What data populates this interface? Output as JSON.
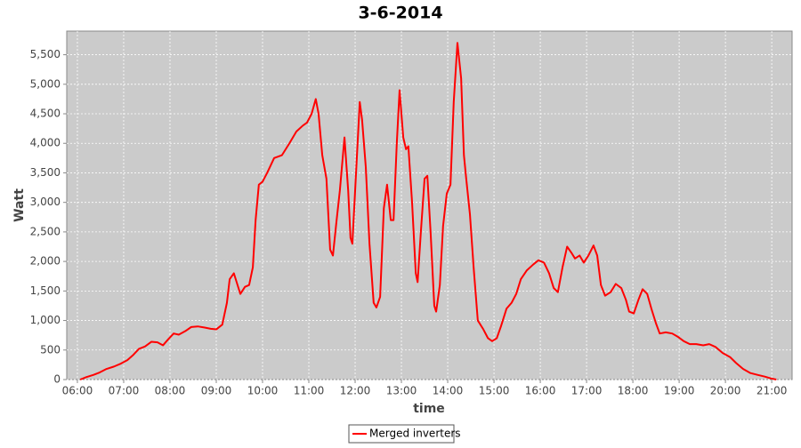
{
  "chart_data": {
    "type": "line",
    "title": "3-6-2014",
    "xlabel": "time",
    "ylabel": "Watt",
    "x": [
      6.06,
      6.19,
      6.35,
      6.48,
      6.63,
      6.79,
      6.94,
      7.08,
      7.21,
      7.33,
      7.46,
      7.6,
      7.73,
      7.85,
      7.96,
      8.08,
      8.19,
      8.33,
      8.46,
      8.6,
      8.75,
      8.88,
      9.0,
      9.13,
      9.23,
      9.29,
      9.38,
      9.44,
      9.52,
      9.62,
      9.71,
      9.79,
      9.85,
      9.92,
      10.0,
      10.1,
      10.25,
      10.42,
      10.58,
      10.73,
      10.87,
      10.96,
      11.06,
      11.15,
      11.21,
      11.29,
      11.38,
      11.46,
      11.52,
      11.6,
      11.67,
      11.77,
      11.85,
      11.9,
      11.94,
      12.02,
      12.1,
      12.15,
      12.23,
      12.31,
      12.4,
      12.46,
      12.54,
      12.62,
      12.69,
      12.77,
      12.83,
      12.9,
      12.96,
      13.04,
      13.1,
      13.15,
      13.23,
      13.31,
      13.35,
      13.42,
      13.5,
      13.56,
      13.63,
      13.71,
      13.75,
      13.83,
      13.9,
      13.98,
      14.06,
      14.13,
      14.21,
      14.29,
      14.35,
      14.4,
      14.48,
      14.56,
      14.65,
      14.77,
      14.87,
      14.96,
      15.06,
      15.15,
      15.27,
      15.38,
      15.48,
      15.58,
      15.71,
      15.85,
      15.96,
      16.08,
      16.19,
      16.29,
      16.38,
      16.48,
      16.58,
      16.67,
      16.75,
      16.85,
      16.94,
      17.04,
      17.15,
      17.23,
      17.31,
      17.4,
      17.52,
      17.63,
      17.75,
      17.85,
      17.92,
      18.02,
      18.12,
      18.21,
      18.31,
      18.4,
      18.5,
      18.58,
      18.71,
      18.85,
      18.98,
      19.1,
      19.23,
      19.37,
      19.52,
      19.65,
      19.79,
      19.94,
      20.1,
      20.23,
      20.38,
      20.54,
      20.69,
      20.85,
      20.98,
      21.1
    ],
    "series": [
      {
        "name": "Merged inverters",
        "color": "#ff0000",
        "values": [
          0,
          40,
          80,
          120,
          180,
          220,
          270,
          330,
          420,
          520,
          560,
          640,
          630,
          580,
          680,
          780,
          760,
          820,
          890,
          900,
          880,
          860,
          850,
          930,
          1300,
          1700,
          1800,
          1650,
          1450,
          1570,
          1600,
          1900,
          2700,
          3300,
          3350,
          3500,
          3750,
          3800,
          4000,
          4200,
          4300,
          4350,
          4500,
          4750,
          4500,
          3800,
          3400,
          2200,
          2100,
          2700,
          3200,
          4100,
          3200,
          2400,
          2300,
          3500,
          4700,
          4400,
          3600,
          2300,
          1300,
          1220,
          1400,
          2900,
          3300,
          2700,
          2700,
          4000,
          4900,
          4100,
          3900,
          3950,
          3000,
          1800,
          1650,
          2500,
          3400,
          3450,
          2500,
          1250,
          1150,
          1600,
          2600,
          3150,
          3300,
          4700,
          5700,
          5100,
          3800,
          3400,
          2800,
          1900,
          1000,
          850,
          700,
          650,
          700,
          900,
          1200,
          1300,
          1450,
          1700,
          1850,
          1950,
          2020,
          1980,
          1800,
          1550,
          1480,
          1900,
          2250,
          2150,
          2050,
          2100,
          1980,
          2100,
          2270,
          2100,
          1600,
          1420,
          1480,
          1620,
          1550,
          1350,
          1150,
          1120,
          1350,
          1530,
          1450,
          1200,
          950,
          780,
          800,
          780,
          720,
          650,
          600,
          600,
          580,
          600,
          550,
          450,
          380,
          280,
          180,
          110,
          80,
          50,
          20,
          0
        ]
      }
    ],
    "xlim": [
      5.77,
      21.44
    ],
    "xticks": [
      {
        "value": 6,
        "label": "06:00"
      },
      {
        "value": 7,
        "label": "07:00"
      },
      {
        "value": 8,
        "label": "08:00"
      },
      {
        "value": 9,
        "label": "09:00"
      },
      {
        "value": 10,
        "label": "10:00"
      },
      {
        "value": 11,
        "label": "11:00"
      },
      {
        "value": 12,
        "label": "12:00"
      },
      {
        "value": 13,
        "label": "13:00"
      },
      {
        "value": 14,
        "label": "14:00"
      },
      {
        "value": 15,
        "label": "15:00"
      },
      {
        "value": 16,
        "label": "16:00"
      },
      {
        "value": 17,
        "label": "17:00"
      },
      {
        "value": 18,
        "label": "18:00"
      },
      {
        "value": 19,
        "label": "19:00"
      },
      {
        "value": 20,
        "label": "20:00"
      },
      {
        "value": 21,
        "label": "21:00"
      }
    ],
    "ylim": [
      0,
      5900
    ],
    "yticks": [
      0,
      500,
      {
        "value": 1000,
        "label": "1,000"
      },
      {
        "value": 1500,
        "label": "1,500"
      },
      {
        "value": 2000,
        "label": "2,000"
      },
      {
        "value": 2500,
        "label": "2,500"
      },
      {
        "value": 3000,
        "label": "3,000"
      },
      {
        "value": 3500,
        "label": "3,500"
      },
      {
        "value": 4000,
        "label": "4,000"
      },
      {
        "value": 4500,
        "label": "4,500"
      },
      {
        "value": 5000,
        "label": "5,000"
      },
      {
        "value": 5500,
        "label": "5,500"
      }
    ],
    "grid": true,
    "legend": "bottom"
  }
}
